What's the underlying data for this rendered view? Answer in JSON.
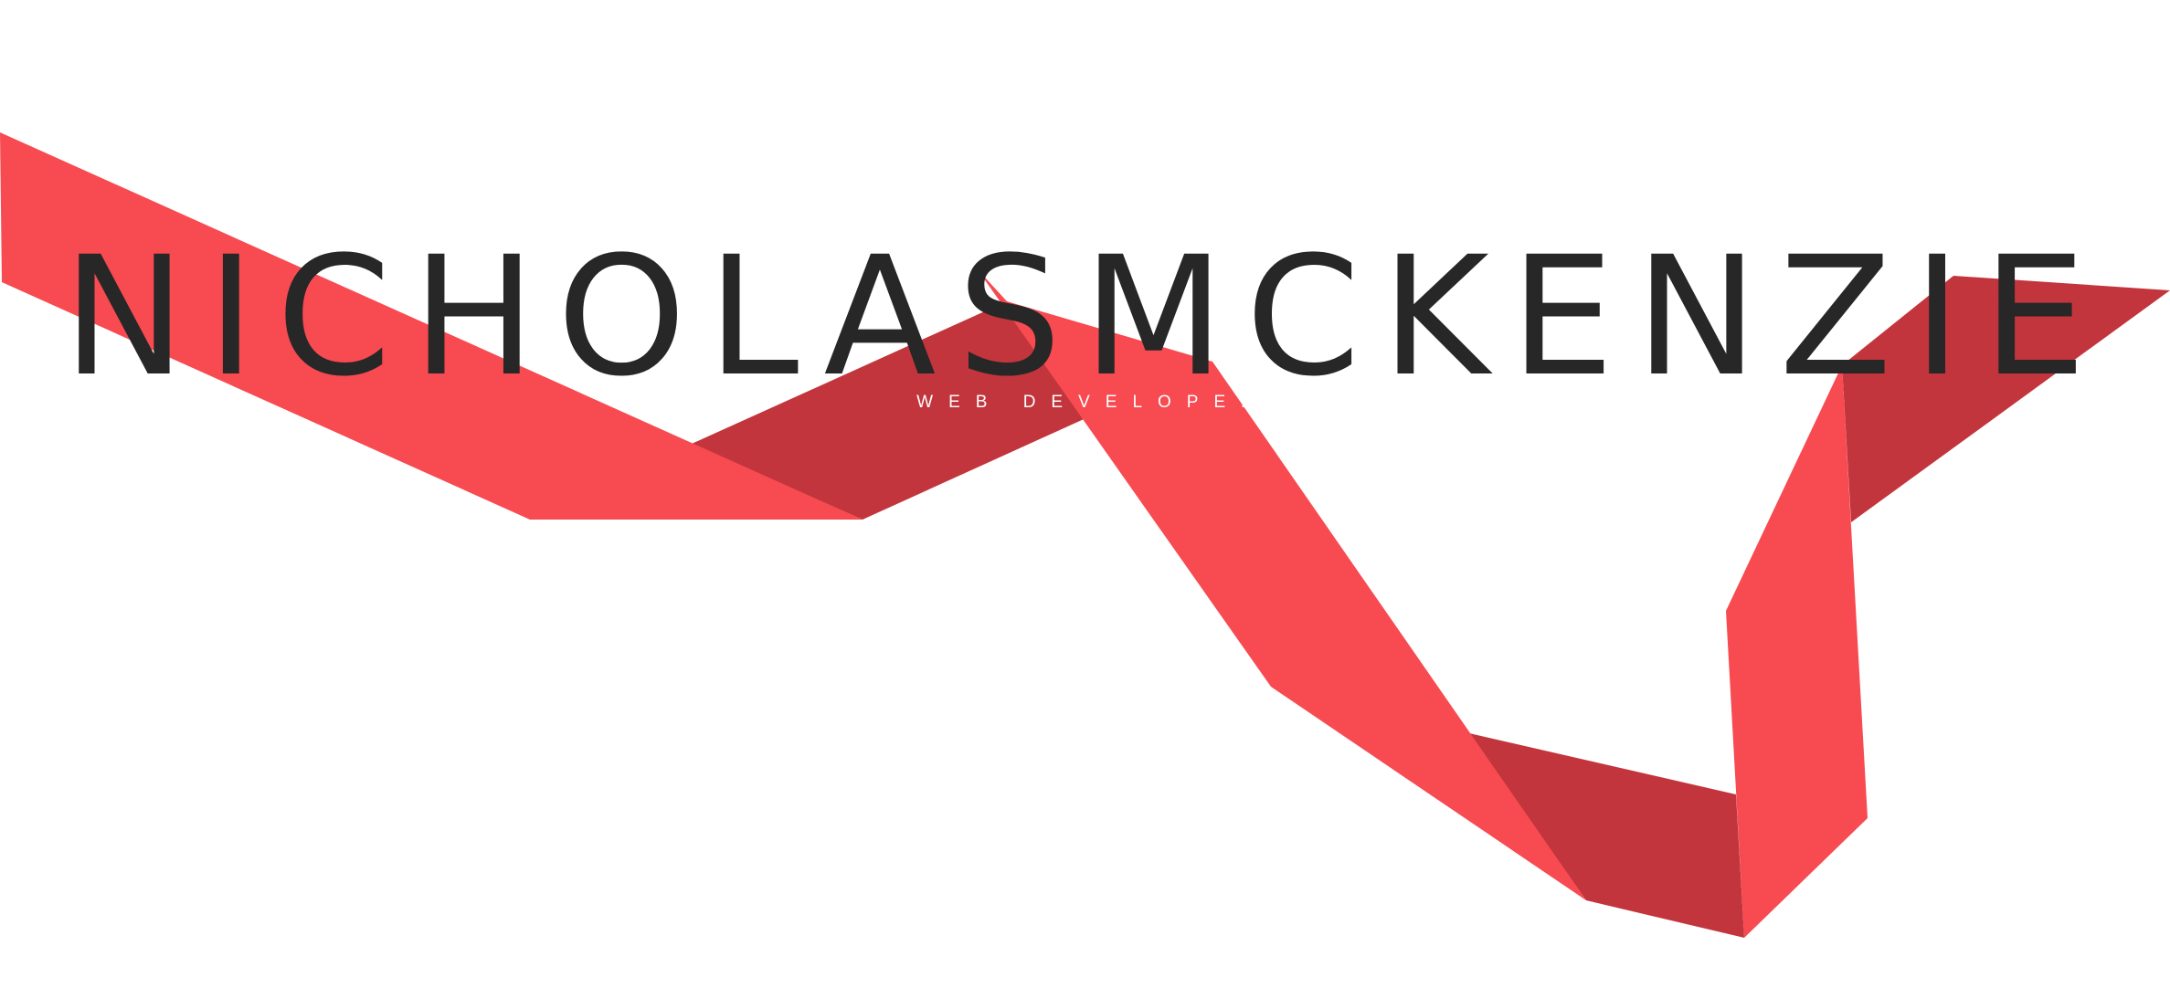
{
  "hero": {
    "first_name": "NICHOLAS",
    "last_name": "MCKENZIE",
    "subtitle": "WEB DEVELOPER"
  },
  "colors": {
    "background": "#ffffff",
    "ribbon_light": "#f74a51",
    "ribbon_dark": "#c2353c",
    "name_text": "#272727",
    "subtitle_text": "#ffffff"
  }
}
